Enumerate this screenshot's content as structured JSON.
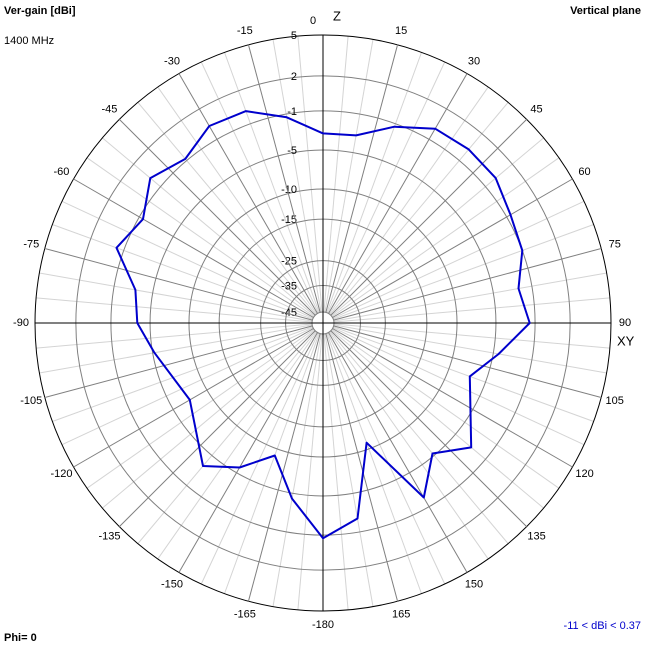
{
  "chart_data": {
    "type": "polar",
    "y_label": "Ver-gain [dBi]",
    "subtitle": "1400 MHz",
    "title": "Vertical plane",
    "zenith_label": "Z",
    "horizon_label": "XY",
    "phi_label": "Phi= 0",
    "range_note": "-11 < dBi < 0.37",
    "rlim": [
      -45,
      5
    ],
    "rticks": [
      5,
      2,
      -1,
      -5,
      -10,
      -15,
      -25,
      -35,
      -45
    ],
    "theta_ticks": [
      0,
      15,
      30,
      45,
      60,
      75,
      90,
      105,
      120,
      135,
      150,
      165,
      -180,
      -165,
      -150,
      -135,
      -120,
      -105,
      -90,
      -75,
      -60,
      -45,
      -30,
      -15
    ],
    "series": [
      {
        "color": "#0000cc",
        "x": [
          0,
          10,
          20,
          30,
          40,
          50,
          60,
          70,
          80,
          90,
          100,
          110,
          130,
          140,
          150,
          160,
          170,
          180,
          -170,
          -160,
          -150,
          -140,
          -120,
          -100,
          -90,
          -80,
          -70,
          -60,
          -50,
          -40,
          -30,
          -20,
          -10
        ],
        "values": [
          -3.2,
          -3.1,
          -1.3,
          0.1,
          0.3,
          0.2,
          -0.6,
          -1.0,
          -2.3,
          -1.5,
          -4.4,
          -7.0,
          -2.8,
          -5.3,
          -2.0,
          -11.0,
          -2.3,
          -0.7,
          -4.4,
          -9.0,
          -5.7,
          -3.5,
          -7.3,
          -5.2,
          -3.6,
          -3.1,
          -0.3,
          -1.4,
          0.2,
          -0.8,
          0.37,
          0.2,
          -1.3
        ]
      }
    ]
  }
}
